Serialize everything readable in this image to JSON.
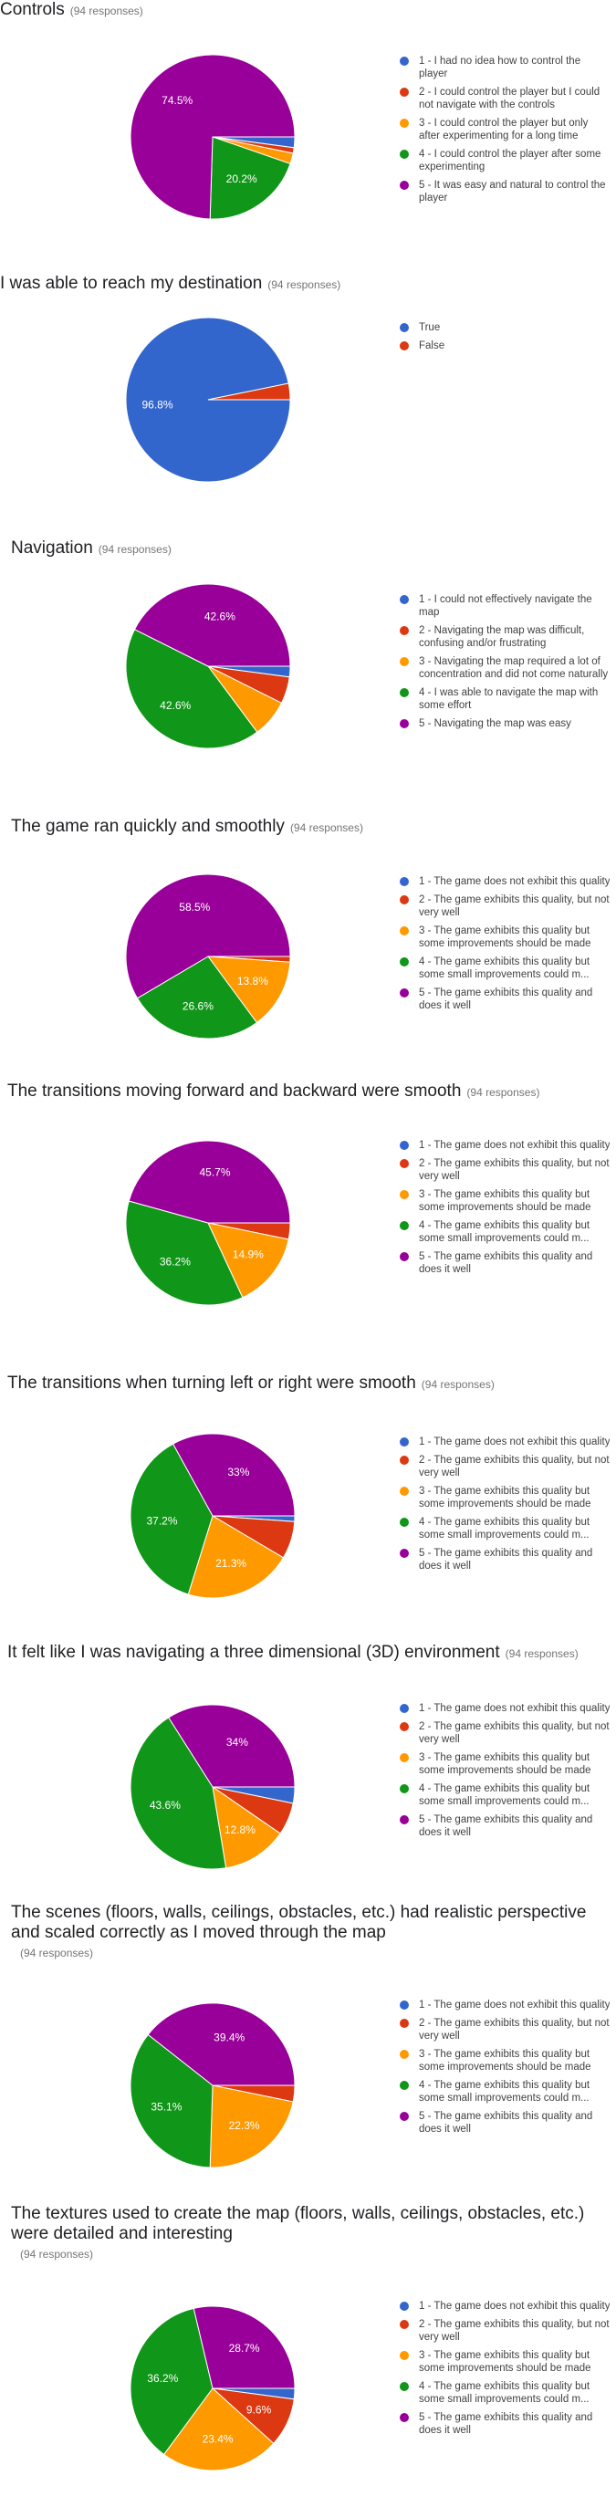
{
  "colors": {
    "blue": "#3366cc",
    "red": "#dc3912",
    "orange": "#ff9900",
    "green": "#109618",
    "purple": "#990099"
  },
  "chart_data": [
    {
      "type": "pie",
      "title": "Controls",
      "responses": "(94 responses)",
      "categories": [
        "1 - I had no idea how to control the player",
        "2 - I could control the player but I could not navigate with the controls",
        "3 - I could control the player but only after experimenting for a long time",
        "4 - I could control the player after some experimenting",
        "5 - It was easy and natural to control the player"
      ],
      "values": [
        2.1,
        1.1,
        2.1,
        20.2,
        74.5
      ],
      "labels": [
        "",
        "",
        "",
        "20.2%",
        "74.5%"
      ],
      "legend": "right"
    },
    {
      "type": "pie",
      "title": "I was able to reach my destination",
      "responses": "(94 responses)",
      "categories": [
        "True",
        "False"
      ],
      "values": [
        96.8,
        3.2
      ],
      "labels": [
        "96.8%",
        ""
      ],
      "legend": "right"
    },
    {
      "type": "pie",
      "title": "Navigation",
      "responses": "(94 responses)",
      "categories": [
        "1 - I could not effectively navigate the map",
        "2 - Navigating the map was difficult, confusing and/or frustrating",
        "3 - Navigating the map required a lot of concentration and did not come naturally",
        "4 - I was able to navigate the map with some effort",
        "5 - Navigating the map was easy"
      ],
      "values": [
        2.1,
        5.3,
        7.4,
        42.6,
        42.6
      ],
      "labels": [
        "",
        "",
        "",
        "42.6%",
        "42.6%"
      ],
      "legend": "right"
    },
    {
      "type": "pie",
      "title": "The game ran quickly and smoothly",
      "responses": "(94 responses)",
      "categories": [
        "1 - The game does not exhibit this quality",
        "2 - The game exhibits this quality, but not very well",
        "3 - The game exhibits this quality but some improvements should be made",
        "4 - The game exhibits this quality but some small improvements could m...",
        "5 - The game exhibits this quality and does it well"
      ],
      "values": [
        0,
        1.1,
        13.8,
        26.6,
        58.5
      ],
      "labels": [
        "",
        "",
        "13.8%",
        "26.6%",
        "58.5%"
      ],
      "legend": "right"
    },
    {
      "type": "pie",
      "title": "The transitions moving forward and backward were smooth",
      "responses": "(94 responses)",
      "categories": [
        "1 - The game does not exhibit this quality",
        "2 - The game exhibits this quality, but not very well",
        "3 - The game exhibits this quality but some improvements should be made",
        "4 - The game exhibits this quality but some small improvements could m...",
        "5 - The game exhibits this quality and does it well"
      ],
      "values": [
        0,
        3.2,
        14.9,
        36.2,
        45.7
      ],
      "labels": [
        "",
        "",
        "14.9%",
        "36.2%",
        "45.7%"
      ],
      "legend": "right"
    },
    {
      "type": "pie",
      "title": "The transitions when turning left or right were smooth",
      "responses": "(94 responses)",
      "categories": [
        "1 - The game does not exhibit this quality",
        "2 - The game exhibits this quality, but not very well",
        "3 - The game exhibits this quality but some improvements should be made",
        "4 - The game exhibits this quality but some small improvements could m...",
        "5 - The game exhibits this quality and does it well"
      ],
      "values": [
        1.1,
        7.4,
        21.3,
        37.2,
        33
      ],
      "labels": [
        "",
        "",
        "21.3%",
        "37.2%",
        "33%"
      ],
      "legend": "right"
    },
    {
      "type": "pie",
      "title": "It felt like I was navigating a three dimensional (3D) environment",
      "responses": "(94 responses)",
      "categories": [
        "1 - The game does not exhibit this quality",
        "2 - The game exhibits this quality, but not very well",
        "3 - The game exhibits this quality but some improvements should be made",
        "4 - The game exhibits this quality but some small improvements could m...",
        "5 - The game exhibits this quality and does it well"
      ],
      "values": [
        3.2,
        6.4,
        12.8,
        43.6,
        34
      ],
      "labels": [
        "",
        "",
        "12.8%",
        "43.6%",
        "34%"
      ],
      "legend": "right"
    },
    {
      "type": "pie",
      "title": "The scenes (floors, walls, ceilings, obstacles, etc.) had realistic perspective and scaled correctly as I moved through the map",
      "responses": "(94 responses)",
      "categories": [
        "1 - The game does not exhibit this quality",
        "2 - The game exhibits this quality, but not very well",
        "3 - The game exhibits this quality but some improvements should be made",
        "4 - The game exhibits this quality but some small improvements could m...",
        "5 - The game exhibits this quality and does it well"
      ],
      "values": [
        0,
        3.2,
        22.3,
        35.1,
        39.4
      ],
      "labels": [
        "",
        "",
        "22.3%",
        "35.1%",
        "39.4%"
      ],
      "legend": "right"
    },
    {
      "type": "pie",
      "title": "The textures used to create the map (floors, walls, ceilings, obstacles, etc.) were detailed and interesting",
      "responses": "(94 responses)",
      "categories": [
        "1 - The game does not exhibit this quality",
        "2 - The game exhibits this quality, but not very well",
        "3 - The game exhibits this quality but some improvements should be made",
        "4 - The game exhibits this quality but some small improvements could m...",
        "5 - The game exhibits this quality and does it well"
      ],
      "values": [
        2.1,
        9.6,
        23.4,
        36.2,
        28.7
      ],
      "labels": [
        "",
        "9.6%",
        "23.4%",
        "36.2%",
        "28.7%"
      ],
      "legend": "right"
    }
  ]
}
